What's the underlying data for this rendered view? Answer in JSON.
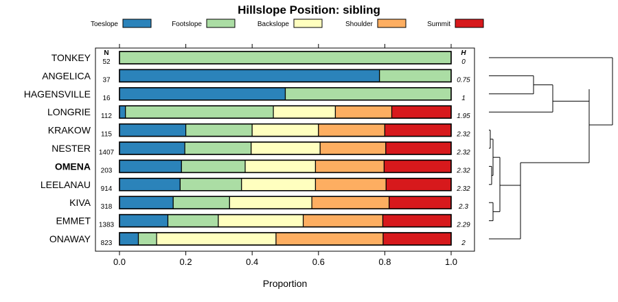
{
  "chart_data": {
    "type": "bar",
    "stacked": true,
    "orientation": "horizontal",
    "title": "Hillslope Position: sibling",
    "xlabel": "Proportion",
    "xlim": [
      0,
      1
    ],
    "xticks": [
      "0.0",
      "0.2",
      "0.4",
      "0.6",
      "0.8",
      "1.0"
    ],
    "n_header": "N",
    "h_header": "H",
    "highlight": "OMENA",
    "legend": [
      {
        "name": "Toeslope",
        "color": "#2b83ba"
      },
      {
        "name": "Footslope",
        "color": "#abdda4"
      },
      {
        "name": "Backslope",
        "color": "#ffffbf"
      },
      {
        "name": "Shoulder",
        "color": "#fdae61"
      },
      {
        "name": "Summit",
        "color": "#d7191c"
      }
    ],
    "rows": [
      {
        "name": "TONKEY",
        "n": "52",
        "h": "0",
        "values": [
          0,
          1,
          0,
          0,
          0
        ]
      },
      {
        "name": "ANGELICA",
        "n": "37",
        "h": "0.75",
        "values": [
          0.784,
          0.216,
          0,
          0,
          0
        ]
      },
      {
        "name": "HAGENSVILLE",
        "n": "16",
        "h": "1",
        "values": [
          0.5,
          0.5,
          0,
          0,
          0
        ]
      },
      {
        "name": "LONGRIE",
        "n": "112",
        "h": "1.95",
        "values": [
          0.018,
          0.446,
          0.187,
          0.17,
          0.179
        ]
      },
      {
        "name": "KRAKOW",
        "n": "115",
        "h": "2.32",
        "values": [
          0.2,
          0.2,
          0.2,
          0.2,
          0.2
        ]
      },
      {
        "name": "NESTER",
        "n": "1407",
        "h": "2.32",
        "values": [
          0.197,
          0.2,
          0.208,
          0.198,
          0.197
        ]
      },
      {
        "name": "OMENA",
        "n": "203",
        "h": "2.32",
        "values": [
          0.187,
          0.192,
          0.212,
          0.207,
          0.202
        ]
      },
      {
        "name": "LEELANAU",
        "n": "914",
        "h": "2.32",
        "values": [
          0.183,
          0.185,
          0.223,
          0.213,
          0.196
        ]
      },
      {
        "name": "KIVA",
        "n": "318",
        "h": "2.3",
        "values": [
          0.162,
          0.17,
          0.248,
          0.233,
          0.187
        ]
      },
      {
        "name": "EMMET",
        "n": "1383",
        "h": "2.29",
        "values": [
          0.146,
          0.152,
          0.256,
          0.24,
          0.206
        ]
      },
      {
        "name": "ONAWAY",
        "n": "823",
        "h": "2",
        "values": [
          0.057,
          0.055,
          0.36,
          0.323,
          0.205
        ]
      }
    ]
  }
}
